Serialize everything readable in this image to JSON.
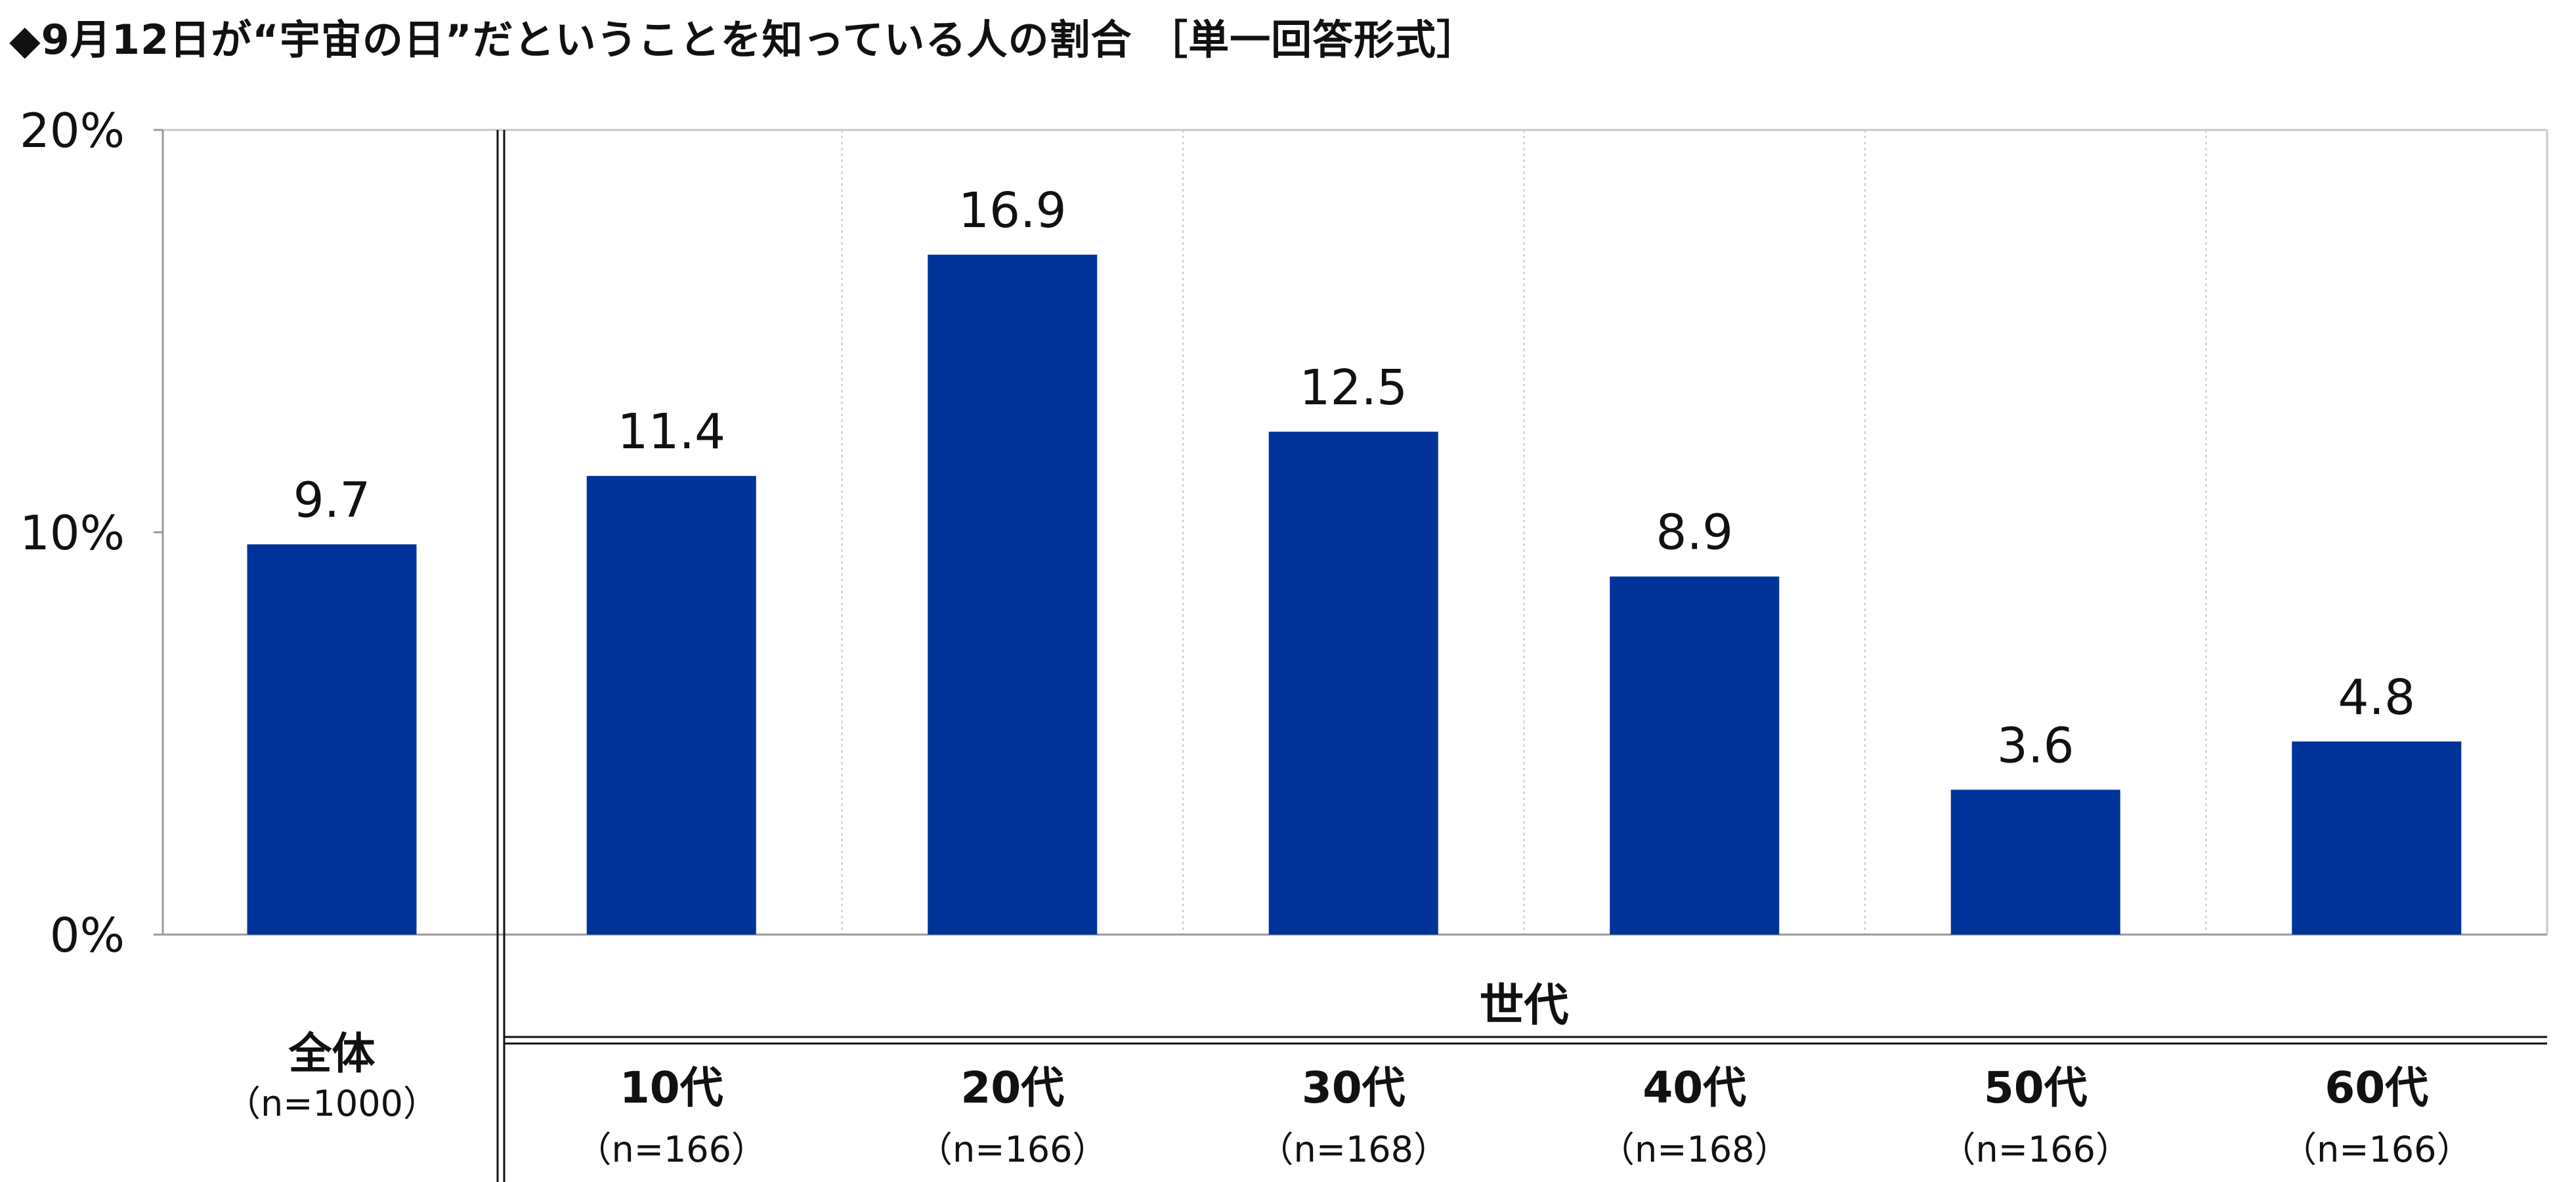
{
  "title": "◆9月12日が“宇宙の日”だということを知っている人の割合 ［単一回答形式］",
  "chart_data": {
    "type": "bar",
    "title": "◆9月12日が“宇宙の日”だということを知っている人の割合 ［単一回答形式］",
    "ylim": [
      0,
      20
    ],
    "yticks": [
      "0%",
      "10%",
      "20%"
    ],
    "ytick_values": [
      0,
      10,
      20
    ],
    "group_label": "世代",
    "grid": true,
    "bar_color": "#003399",
    "categories": [
      "全体",
      "10代",
      "20代",
      "30代",
      "40代",
      "50代",
      "60代"
    ],
    "sample_sizes": [
      "（n=1000）",
      "（n=166）",
      "（n=166）",
      "（n=168）",
      "（n=168）",
      "（n=166）",
      "（n=166）"
    ],
    "values": [
      9.7,
      11.4,
      16.9,
      12.5,
      8.9,
      3.6,
      4.8
    ],
    "value_labels": [
      "9.7",
      "11.4",
      "16.9",
      "12.5",
      "8.9",
      "3.6",
      "4.8"
    ]
  }
}
